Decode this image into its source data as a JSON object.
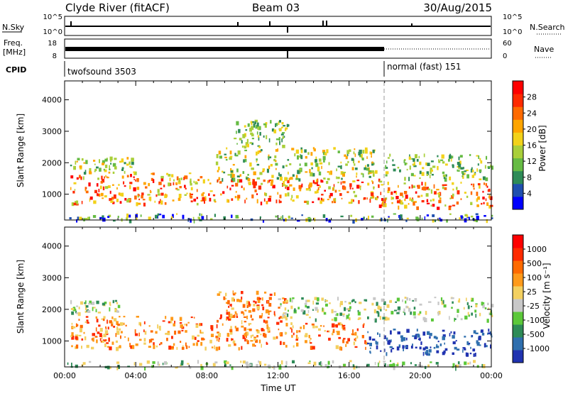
{
  "header": {
    "station": "Clyde River (fitACF)",
    "beam": "Beam 03",
    "date": "30/Aug/2015"
  },
  "status_panels": {
    "nsky_label": "N.Sky",
    "nsky_ticks": [
      "10^5",
      "10^0"
    ],
    "nsearch_label": "N.Search",
    "nsearch_ticks": [
      "10^5",
      "10^0"
    ],
    "freq_label_1": "Freq.",
    "freq_label_2": "[MHz]",
    "freq_ticks": [
      "18",
      "8"
    ],
    "nave_label": "Nave",
    "nave_ticks": [
      "60",
      "0"
    ],
    "cpid_label": "CPID",
    "cpid_segments": [
      {
        "label": "twofsound 3503",
        "start_hour": 0,
        "end_hour": 18
      },
      {
        "label": "normal (fast) 151",
        "start_hour": 18,
        "end_hour": 24
      }
    ]
  },
  "chart_data": [
    {
      "type": "heatmap",
      "panel": "power",
      "ylabel": "Slant Range [km]",
      "xlim": [
        0,
        24
      ],
      "ylim": [
        180,
        4600
      ],
      "y_ticks": [
        1000,
        2000,
        3000,
        4000
      ],
      "colorbar_label": "Power [dB]",
      "colorbar_ticks": [
        "28",
        "24",
        "20",
        "16",
        "12",
        "8",
        "4"
      ],
      "colorbar_colors": [
        "#0000ff",
        "#1f4faf",
        "#2e8b57",
        "#66bb44",
        "#a9cf3a",
        "#f2d21a",
        "#ffa500",
        "#ff6a00",
        "#ff2a00",
        "#ff0000"
      ],
      "echo_regions": [
        {
          "start_hour": 0.3,
          "end_hour": 7.9,
          "range_km": [
            700,
            1700
          ],
          "level": "high"
        },
        {
          "start_hour": 0.3,
          "end_hour": 4.0,
          "range_km": [
            1700,
            2200
          ],
          "level": "medium"
        },
        {
          "start_hour": 8.0,
          "end_hour": 17.8,
          "range_km": [
            750,
            1500
          ],
          "level": "high"
        },
        {
          "start_hour": 8.5,
          "end_hour": 17.5,
          "range_km": [
            1500,
            2500
          ],
          "level": "medium"
        },
        {
          "start_hour": 9.5,
          "end_hour": 12.5,
          "range_km": [
            2500,
            3400
          ],
          "level": "low"
        },
        {
          "start_hour": 17.5,
          "end_hour": 24.0,
          "range_km": [
            600,
            1400
          ],
          "level": "high"
        },
        {
          "start_hour": 18.0,
          "end_hour": 24.0,
          "range_km": [
            1500,
            2300
          ],
          "level": "low"
        },
        {
          "start_hour": 0.0,
          "end_hour": 24.0,
          "range_km": [
            180,
            400
          ],
          "level": "ground"
        }
      ]
    },
    {
      "type": "heatmap",
      "panel": "velocity",
      "xlabel": "Time UT",
      "ylabel": "Slant Range [km]",
      "xlim": [
        0,
        24
      ],
      "ylim": [
        180,
        4600
      ],
      "x_ticks": [
        "00:00",
        "04:00",
        "08:00",
        "12:00",
        "16:00",
        "20:00",
        "00:00"
      ],
      "y_ticks": [
        1000,
        2000,
        3000,
        4000
      ],
      "colorbar_label": "Velocity [m s⁻¹]",
      "colorbar_ticks": [
        "1000",
        "500",
        "100",
        "25",
        "-25",
        "-100",
        "-500",
        "-1000"
      ],
      "colorbar_colors": [
        "#2033b0",
        "#2f6fae",
        "#2e8b57",
        "#5cc83a",
        "#c8c8c8",
        "#f3d060",
        "#ff9a1a",
        "#ff6a00",
        "#ff2a00",
        "#ff0000"
      ],
      "echo_regions": [
        {
          "start_hour": 0.3,
          "end_hour": 7.9,
          "range_km": [
            800,
            1800
          ],
          "level": "away"
        },
        {
          "start_hour": 0.3,
          "end_hour": 3.0,
          "range_km": [
            1900,
            2300
          ],
          "level": "ground"
        },
        {
          "start_hour": 8.0,
          "end_hour": 17.0,
          "range_km": [
            800,
            1600
          ],
          "level": "away"
        },
        {
          "start_hour": 8.5,
          "end_hour": 12.5,
          "range_km": [
            1600,
            2600
          ],
          "level": "away"
        },
        {
          "start_hour": 12.0,
          "end_hour": 24.0,
          "range_km": [
            1700,
            2400
          ],
          "level": "ground"
        },
        {
          "start_hour": 17.0,
          "end_hour": 24.0,
          "range_km": [
            600,
            1400
          ],
          "level": "toward"
        },
        {
          "start_hour": 0.0,
          "end_hour": 24.0,
          "range_km": [
            180,
            400
          ],
          "level": "ground"
        }
      ]
    }
  ]
}
